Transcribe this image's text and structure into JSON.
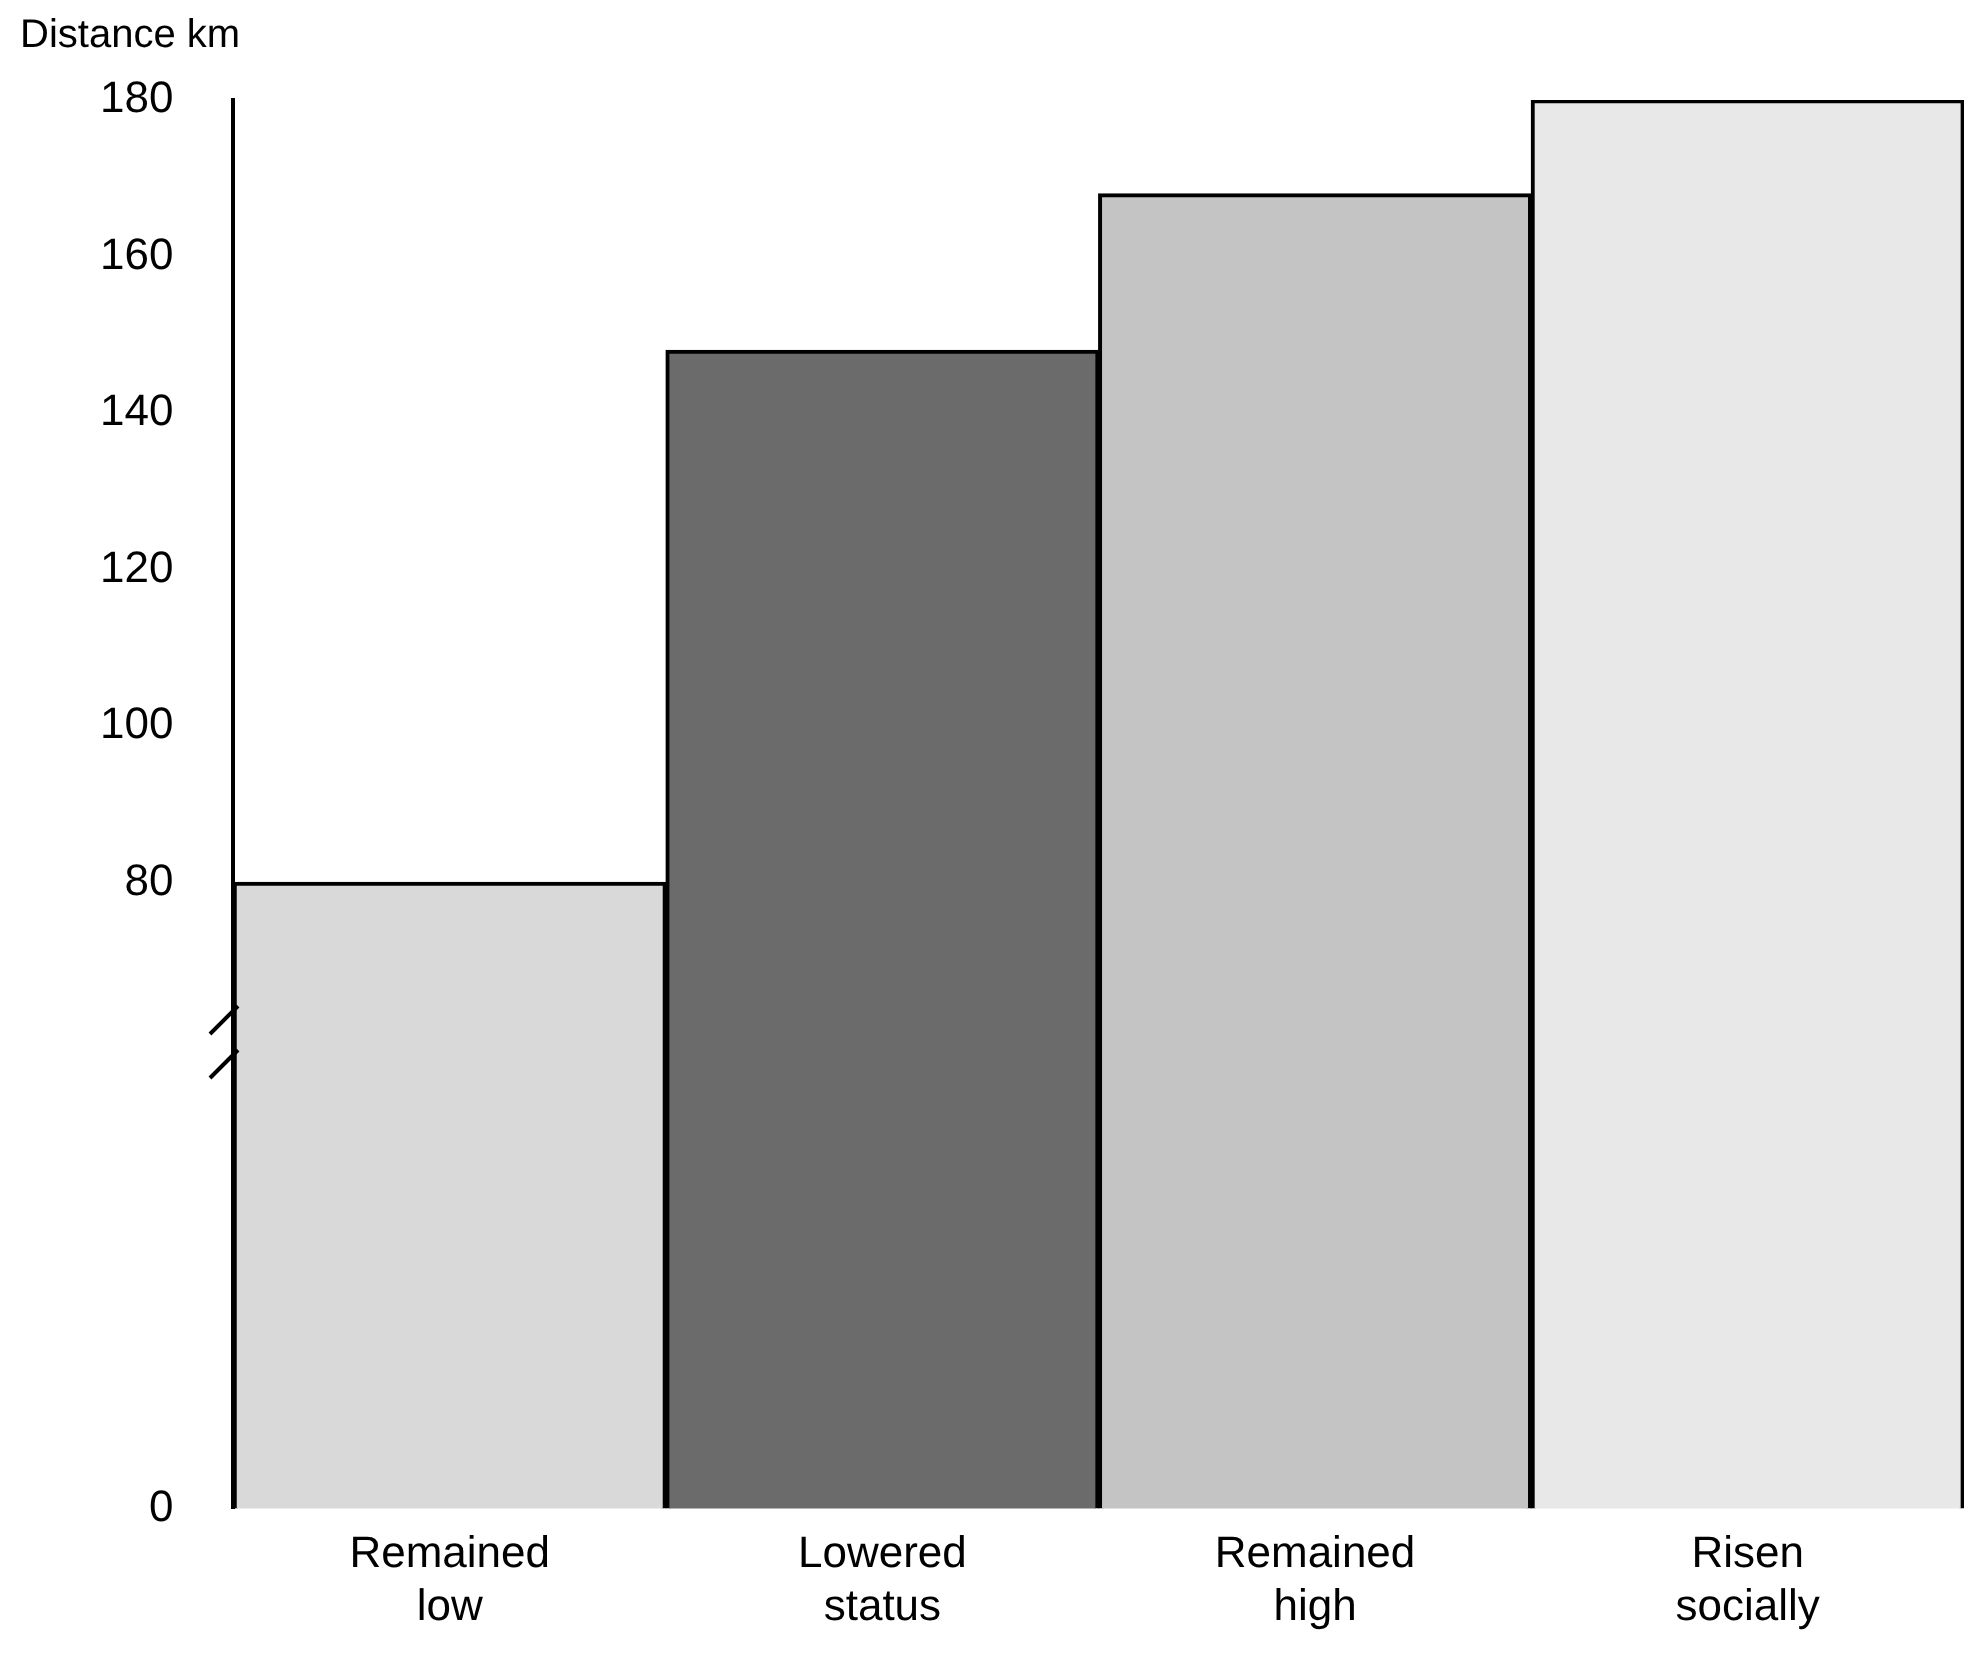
{
  "chart_data": {
    "type": "bar",
    "ylabel": "Distance km",
    "categories": [
      "Remained low",
      "Lowered status",
      "Remained high",
      "Risen socially"
    ],
    "values": [
      80,
      148,
      168,
      180
    ],
    "colors": [
      "#d9d9d9",
      "#6b6b6b",
      "#c4c4c4",
      "#e8e8e8"
    ],
    "ylim": [
      0,
      180
    ],
    "yticks": [
      0,
      80,
      100,
      120,
      140,
      160,
      180
    ],
    "grid": false,
    "legend": false
  }
}
